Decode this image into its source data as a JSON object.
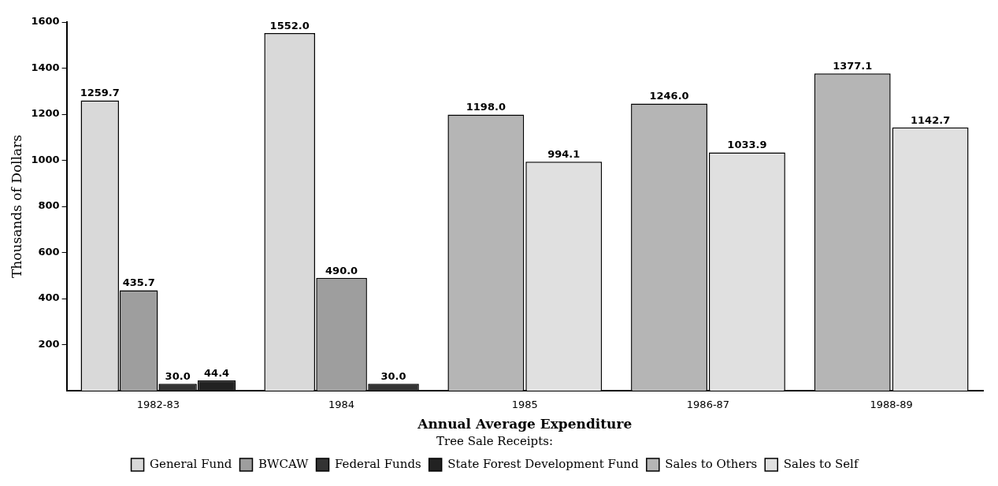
{
  "chart_data": {
    "type": "bar",
    "xlabel": "Annual Average Expenditure",
    "ylabel": "Thousands of Dollars",
    "legend_title": "Tree Sale Receipts:",
    "categories": [
      "1982-83",
      "1984",
      "1985",
      "1986-87",
      "1988-89"
    ],
    "series": [
      {
        "name": "General Fund",
        "color": "#d9d9d9",
        "values": [
          1259.7,
          1552.0,
          null,
          null,
          null
        ],
        "value_labels": [
          "1259.7",
          "1552.0",
          null,
          null,
          null
        ]
      },
      {
        "name": "BWCAW",
        "color": "#9e9e9e",
        "values": [
          435.7,
          490.0,
          null,
          null,
          null
        ],
        "value_labels": [
          "435.7",
          "490.0",
          null,
          null,
          null
        ]
      },
      {
        "name": "Federal Funds",
        "color": "#333333",
        "values": [
          30.0,
          30.0,
          null,
          null,
          null
        ],
        "value_labels": [
          "30.0",
          "30.0",
          null,
          null,
          null
        ]
      },
      {
        "name": "State Forest Development Fund",
        "color": "#222222",
        "values": [
          44.4,
          null,
          null,
          null,
          null
        ],
        "value_labels": [
          "44.4",
          null,
          null,
          null,
          null
        ]
      },
      {
        "name": "Sales to Others",
        "color": "#b5b5b5",
        "values": [
          null,
          null,
          1198.0,
          1246.0,
          1377.1
        ],
        "value_labels": [
          null,
          null,
          "1198.0",
          "1246.0",
          "1377.1"
        ]
      },
      {
        "name": "Sales to Self",
        "color": "#e0e0e0",
        "values": [
          null,
          null,
          994.1,
          1033.9,
          1142.7
        ],
        "value_labels": [
          null,
          null,
          "994.1",
          "1033.9",
          "1142.7"
        ]
      }
    ],
    "ylim": [
      0,
      1600
    ],
    "yticks": [
      200,
      400,
      600,
      800,
      1000,
      1200,
      1400,
      1600
    ],
    "grid": false,
    "legend": "bottom"
  }
}
